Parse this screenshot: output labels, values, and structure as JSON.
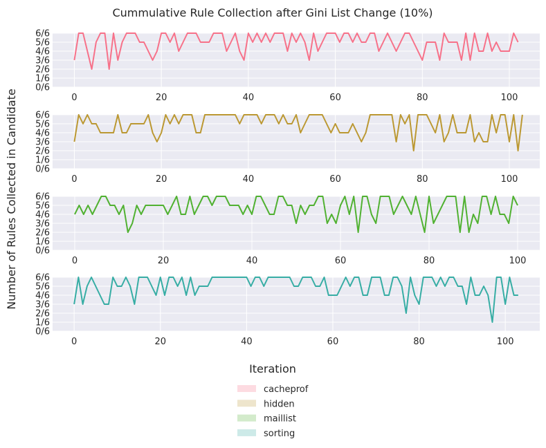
{
  "figure": {
    "title": "Cummulative Rule Collection after Gini List Change (10%)",
    "ylabel": "Number of Rules Collected in Candidate",
    "xlabel": "Iteration",
    "legend_placement": "bottom-center"
  },
  "chart_data": [
    {
      "type": "line",
      "series": [
        {
          "name": "cacheprof",
          "color": "#f77189"
        }
      ],
      "xticks": [
        "0",
        "20",
        "40",
        "60",
        "80",
        "100"
      ],
      "yticks": [
        "0/6",
        "1/6",
        "2/6",
        "3/6",
        "4/6",
        "5/6",
        "6/6"
      ],
      "xlim": [
        -5,
        107
      ],
      "ylim": [
        0,
        6
      ],
      "grid": true,
      "y": [
        3,
        6,
        6,
        4,
        2,
        5,
        6,
        6,
        2,
        6,
        3,
        5,
        6,
        6,
        6,
        5,
        5,
        4,
        3,
        4,
        6,
        6,
        5,
        6,
        4,
        5,
        6,
        6,
        6,
        5,
        5,
        5,
        6,
        6,
        6,
        4,
        5,
        6,
        4,
        3,
        6,
        5,
        6,
        5,
        6,
        5,
        6,
        6,
        6,
        4,
        6,
        5,
        6,
        5,
        3,
        6,
        4,
        5,
        6,
        6,
        6,
        5,
        6,
        6,
        5,
        6,
        5,
        5,
        6,
        6,
        4,
        5,
        6,
        5,
        4,
        5,
        6,
        6,
        5,
        4,
        3,
        5,
        5,
        5,
        3,
        6,
        5,
        5,
        5,
        3,
        6,
        3,
        6,
        4,
        4,
        6,
        4,
        5,
        4,
        4,
        4,
        6,
        5
      ]
    },
    {
      "type": "line",
      "series": [
        {
          "name": "hidden",
          "color": "#bb9832"
        }
      ],
      "xticks": [
        "0",
        "20",
        "40",
        "60",
        "80",
        "100"
      ],
      "yticks": [
        "0/6",
        "1/6",
        "2/6",
        "3/6",
        "4/6",
        "5/6",
        "6/6"
      ],
      "xlim": [
        -5,
        107
      ],
      "ylim": [
        0,
        6
      ],
      "grid": true,
      "y": [
        3,
        6,
        5,
        6,
        5,
        5,
        4,
        4,
        4,
        4,
        6,
        4,
        4,
        5,
        5,
        5,
        5,
        6,
        4,
        3,
        4,
        6,
        5,
        6,
        5,
        6,
        6,
        6,
        4,
        4,
        6,
        6,
        6,
        6,
        6,
        6,
        6,
        6,
        5,
        6,
        6,
        6,
        6,
        5,
        6,
        6,
        6,
        5,
        6,
        5,
        5,
        6,
        4,
        5,
        6,
        6,
        6,
        6,
        5,
        4,
        5,
        4,
        4,
        4,
        5,
        4,
        3,
        4,
        6,
        6,
        6,
        6,
        6,
        6,
        3,
        6,
        5,
        6,
        2,
        6,
        6,
        6,
        5,
        4,
        6,
        3,
        4,
        6,
        4,
        4,
        4,
        6,
        3,
        4,
        3,
        3,
        6,
        4,
        6,
        6,
        3,
        6,
        2,
        6
      ]
    },
    {
      "type": "line",
      "series": [
        {
          "name": "maillist",
          "color": "#50b131"
        }
      ],
      "xticks": [
        "0",
        "20",
        "40",
        "60",
        "80",
        "100"
      ],
      "yticks": [
        "0/6",
        "1/6",
        "2/6",
        "3/6",
        "4/6",
        "5/6",
        "6/6"
      ],
      "xlim": [
        -5,
        105
      ],
      "ylim": [
        0,
        6
      ],
      "grid": true,
      "y": [
        4,
        5,
        4,
        5,
        4,
        5,
        6,
        6,
        5,
        5,
        4,
        5,
        2,
        3,
        5,
        4,
        5,
        5,
        5,
        5,
        5,
        4,
        5,
        6,
        4,
        4,
        6,
        4,
        5,
        6,
        6,
        5,
        6,
        6,
        6,
        5,
        5,
        5,
        4,
        5,
        4,
        6,
        6,
        5,
        4,
        4,
        6,
        6,
        5,
        5,
        3,
        5,
        4,
        5,
        5,
        6,
        6,
        3,
        4,
        3,
        5,
        6,
        4,
        6,
        2,
        6,
        6,
        4,
        3,
        6,
        6,
        6,
        4,
        5,
        6,
        5,
        4,
        6,
        4,
        2,
        6,
        3,
        4,
        5,
        6,
        6,
        6,
        2,
        6,
        2,
        4,
        3,
        6,
        6,
        4,
        6,
        4,
        4,
        3,
        6,
        5
      ]
    },
    {
      "type": "line",
      "series": [
        {
          "name": "sorting",
          "color": "#36ada4"
        }
      ],
      "xticks": [
        "0",
        "20",
        "40",
        "60",
        "80",
        "100"
      ],
      "yticks": [
        "0/6",
        "1/6",
        "2/6",
        "3/6",
        "4/6",
        "5/6",
        "6/6"
      ],
      "xlim": [
        -5,
        108
      ],
      "ylim": [
        0,
        6
      ],
      "grid": true,
      "y": [
        3,
        6,
        3,
        5,
        6,
        5,
        4,
        3,
        3,
        6,
        5,
        5,
        6,
        5,
        3,
        6,
        6,
        6,
        5,
        4,
        6,
        4,
        6,
        6,
        5,
        6,
        4,
        6,
        4,
        5,
        5,
        5,
        6,
        6,
        6,
        6,
        6,
        6,
        6,
        6,
        6,
        5,
        6,
        6,
        5,
        6,
        6,
        6,
        6,
        6,
        6,
        5,
        5,
        6,
        6,
        6,
        5,
        5,
        6,
        4,
        4,
        4,
        5,
        6,
        5,
        6,
        6,
        4,
        4,
        6,
        6,
        6,
        4,
        4,
        6,
        6,
        5,
        2,
        6,
        4,
        3,
        6,
        6,
        6,
        5,
        6,
        5,
        6,
        6,
        5,
        5,
        3,
        6,
        4,
        4,
        5,
        4,
        1,
        6,
        6,
        3,
        6,
        4,
        4
      ]
    }
  ]
}
